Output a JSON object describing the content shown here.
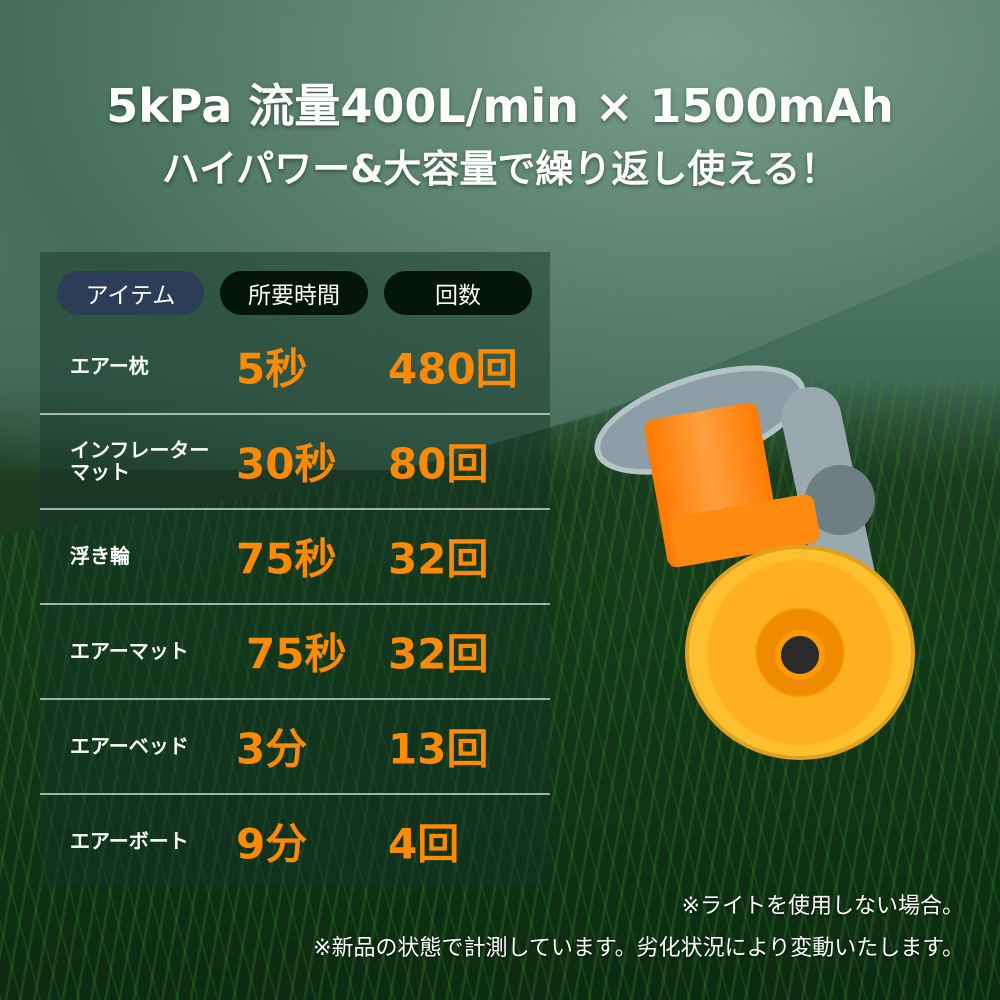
{
  "headline": {
    "line1": "5kPa 流量400L/min × 1500mAh",
    "line2": "ハイパワー&大容量で繰り返し使える！"
  },
  "table": {
    "headers": [
      "アイテム",
      "所要時間",
      "回数"
    ],
    "rows": [
      {
        "item": "エアー枕",
        "time": "5秒",
        "count": "480回"
      },
      {
        "item": "インフレーターマット",
        "time": "30秒",
        "count": "80回"
      },
      {
        "item": "浮き輪",
        "time": "75秒",
        "count": "32回"
      },
      {
        "item": "エアーマット",
        "time": "75秒",
        "count": "32回"
      },
      {
        "item": "エアーベッド",
        "time": "3分",
        "count": "13回"
      },
      {
        "item": "エアーボート",
        "time": "9分",
        "count": "4回"
      }
    ]
  },
  "notes": [
    "※ライトを使用しない場合。",
    "※新品の状態で計測しています。劣化状況により変動いたします。"
  ],
  "colors": {
    "value": "#ff8a00",
    "pill_item": "#2c3e57",
    "pill_dark": "#061509"
  }
}
